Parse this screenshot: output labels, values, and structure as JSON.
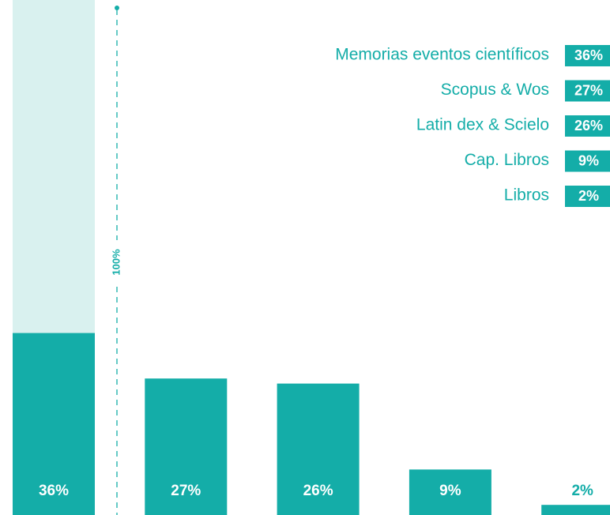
{
  "chart_data": {
    "type": "bar",
    "categories": [
      "Memorias eventos científicos",
      "Scopus & Wos",
      "Latin dex & Scielo",
      "Cap. Libros",
      "Libros"
    ],
    "values": [
      36,
      27,
      26,
      9,
      2
    ],
    "value_labels": [
      "36%",
      "27%",
      "26%",
      "9%",
      "2%"
    ],
    "color": "#14ada8",
    "track_color": "#d9f1ef",
    "ylim": [
      0,
      100
    ],
    "yticks": [
      {
        "value": 100,
        "label": "100%"
      }
    ]
  }
}
